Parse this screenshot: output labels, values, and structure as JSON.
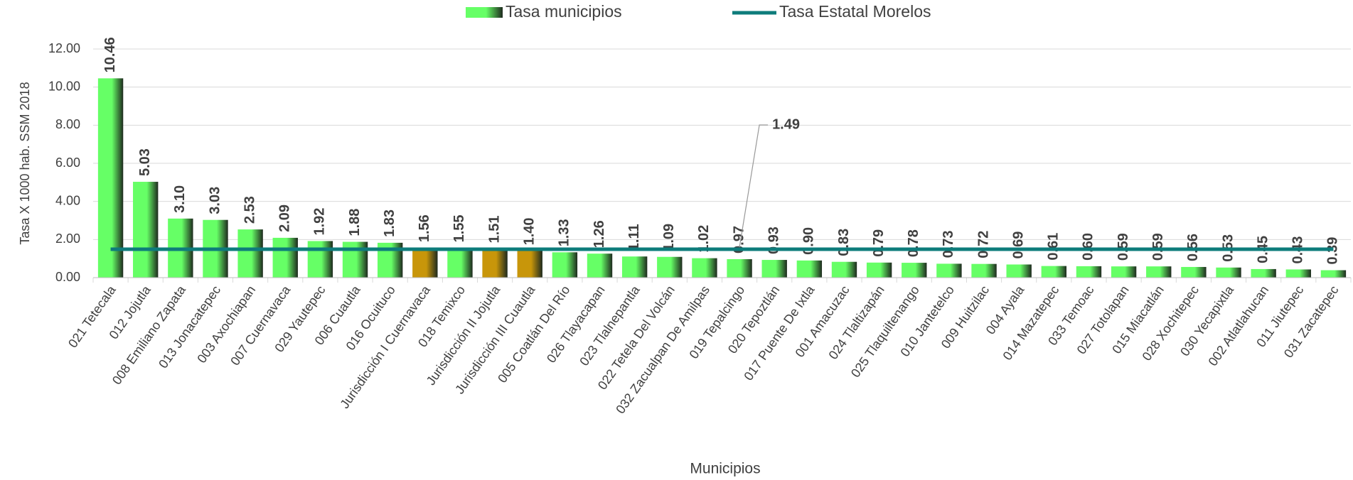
{
  "chart_data": {
    "type": "bar",
    "y_axis_label": "Tasa X 1000 hab. SSM 2018",
    "x_axis_label": "Municipios",
    "categories": [
      "021 Tetecala",
      "012 Jojutla",
      "008 Emiliano Zapata",
      "013 Jonacatepec",
      "003 Axochiapan",
      "007 Cuernavaca",
      "029 Yautepec",
      "006 Cuautla",
      "016 Ocuituco",
      "Jurisdicción I Cuernavaca",
      "018 Temixco",
      "Jurisdicción II Jojutla",
      "Jurisdicción III Cuautla",
      "005 Coatlán Del Río",
      "026 Tlayacapan",
      "023 Tlalnepantla",
      "022 Tetela Del Volcán",
      "032 Zacualpan De Amilpas",
      "019 Tepalcingo",
      "020 Tepoztlán",
      "017 Puente De Ixtla",
      "001 Amacuzac",
      "024 Tlaltizapán",
      "025 Tlaquiltenango",
      "010 Jantetelco",
      "009 Huitzilac",
      "004 Ayala",
      "014 Mazatepec",
      "033 Temoac",
      "027 Totolapan",
      "015 Miacatlán",
      "028 Xochitepec",
      "030 Yecapixtla",
      "002 Atlatlahucan",
      "011 Jiutepec",
      "031 Zacatepec"
    ],
    "series": [
      {
        "name": "Tasa municipios",
        "type": "bar",
        "color": "#66ff66",
        "colors": [
          "#66ff66",
          "#66ff66",
          "#66ff66",
          "#66ff66",
          "#66ff66",
          "#66ff66",
          "#66ff66",
          "#66ff66",
          "#66ff66",
          "#c8960a",
          "#66ff66",
          "#c8960a",
          "#c8960a",
          "#66ff66",
          "#66ff66",
          "#66ff66",
          "#66ff66",
          "#66ff66",
          "#66ff66",
          "#66ff66",
          "#66ff66",
          "#66ff66",
          "#66ff66",
          "#66ff66",
          "#66ff66",
          "#66ff66",
          "#66ff66",
          "#66ff66",
          "#66ff66",
          "#66ff66",
          "#66ff66",
          "#66ff66",
          "#66ff66",
          "#66ff66",
          "#66ff66",
          "#66ff66"
        ],
        "values": [
          10.46,
          5.03,
          3.1,
          3.03,
          2.53,
          2.09,
          1.92,
          1.88,
          1.83,
          1.56,
          1.55,
          1.51,
          1.4,
          1.33,
          1.26,
          1.11,
          1.09,
          1.02,
          0.97,
          0.93,
          0.9,
          0.83,
          0.79,
          0.78,
          0.73,
          0.72,
          0.69,
          0.61,
          0.6,
          0.59,
          0.59,
          0.56,
          0.53,
          0.45,
          0.43,
          0.39
        ],
        "value_labels": [
          "10.46",
          "5.03",
          "3.10",
          "3.03",
          "2.53",
          "2.09",
          "1.92",
          "1.88",
          "1.83",
          "1.56",
          "1.55",
          "1.51",
          "1.40",
          "1.33",
          "1.26",
          "1.11",
          "1.09",
          "1.02",
          "0.97",
          "0.93",
          "0.90",
          "0.83",
          "0.79",
          "0.78",
          "0.73",
          "0.72",
          "0.69",
          "0.61",
          "0.60",
          "0.59",
          "0.59",
          "0.56",
          "0.53",
          "0.45",
          "0.43",
          "0.39"
        ]
      },
      {
        "name": "Tasa Estatal Morelos",
        "type": "line",
        "color": "#0e7c7b",
        "values": [
          1.49,
          1.49,
          1.49,
          1.49,
          1.49,
          1.49,
          1.49,
          1.49,
          1.49,
          1.49,
          1.49,
          1.49,
          1.49,
          1.49,
          1.49,
          1.49,
          1.49,
          1.49,
          1.49,
          1.49,
          1.49,
          1.49,
          1.49,
          1.49,
          1.49,
          1.49,
          1.49,
          1.49,
          1.49,
          1.49,
          1.49,
          1.49,
          1.49,
          1.49,
          1.49,
          1.49
        ],
        "value_labels": [
          null,
          null,
          null,
          null,
          null,
          null,
          null,
          null,
          null,
          null,
          null,
          null,
          null,
          null,
          null,
          null,
          null,
          null,
          "1.49",
          null,
          null,
          null,
          null,
          null,
          null,
          null,
          null,
          null,
          null,
          null,
          null,
          null,
          null,
          null,
          null,
          null
        ]
      }
    ],
    "ylim": [
      0,
      12
    ],
    "yticks": [
      {
        "value": 0,
        "label": "0.00"
      },
      {
        "value": 2,
        "label": "2.00"
      },
      {
        "value": 4,
        "label": "4.00"
      },
      {
        "value": 6,
        "label": "6.00"
      },
      {
        "value": 8,
        "label": "8.00"
      },
      {
        "value": 10,
        "label": "10.00"
      },
      {
        "value": 12,
        "label": "12.00"
      }
    ],
    "grid": true,
    "legend": "top"
  }
}
